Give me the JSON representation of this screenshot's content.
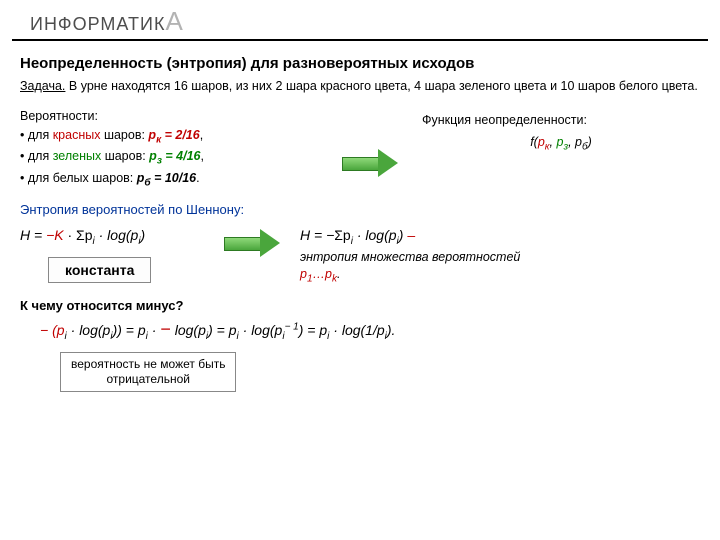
{
  "header": {
    "brand": "ИНФОРМАТИК"
  },
  "title": "Неопределенность (энтропия) для разновероятных исходов",
  "task": {
    "label": "Задача.",
    "text": "В урне находятся 16 шаров, из них 2 шара красного цвета, 4 шара зеленого цвета и 10 шаров белого цвета."
  },
  "probs": {
    "heading": "Вероятности:",
    "red_label": "для ",
    "red_word": "красных",
    "red_tail": " шаров:  ",
    "red_var": "p",
    "red_sub": "к",
    "red_val": " = 2/16",
    "green_label": "для ",
    "green_word": "зеленых",
    "green_tail": " шаров:  ",
    "green_var": "p",
    "green_sub": "з",
    "green_val": " = 4/16",
    "white_label": "для ",
    "white_word": "белых",
    "white_tail": " шаров:    ",
    "white_var": "p",
    "white_sub": "б",
    "white_val": " = 10/16"
  },
  "func": {
    "label": "Функция неопределенности:",
    "f": "f(",
    "pk": "p",
    "pk_sub": "к",
    "pz": "p",
    "pz_sub": "з",
    "pb": "p",
    "pb_sub": "б",
    "close": ")"
  },
  "shannon": {
    "title": "Энтропия вероятностей по Шеннону:",
    "left_formula_pre": "H = ",
    "left_minus": "−",
    "left_K": "K",
    "left_formula_post": " · Σp",
    "left_i": "i",
    "left_log": " · log(p",
    "left_i2": "i",
    "left_close": ")",
    "right_pre": "H = ",
    "right_minus": "−",
    "right_post": "Σp",
    "right_i": "i",
    "right_log": " · log(p",
    "right_i2": "i",
    "right_close": ")   ",
    "right_dash": "–",
    "note_1": "энтропия множества вероятностей",
    "note_2a": "p",
    "note_2b": "1",
    "note_2c": "…p",
    "note_2d": "k",
    "note_2e": "."
  },
  "consta": "константа",
  "question": "К чему относится минус?",
  "eq": {
    "a": "− (p",
    "i1": "i",
    "b": " · log(p",
    "i2": "i",
    "c": ")) =  p",
    "i3": "i",
    "d": " · ",
    "minus2": "−",
    "e": " log(p",
    "i4": "i",
    "f": ") = p",
    "i5": "i",
    "g": " · log(p",
    "i6": "i",
    "h": "− 1",
    "j": ") = p",
    "i7": "i",
    "k": " · log(1/p",
    "i8": "i",
    "l": ")."
  },
  "negbox": {
    "l1": "вероятность не может быть",
    "l2": "отрицательной"
  }
}
